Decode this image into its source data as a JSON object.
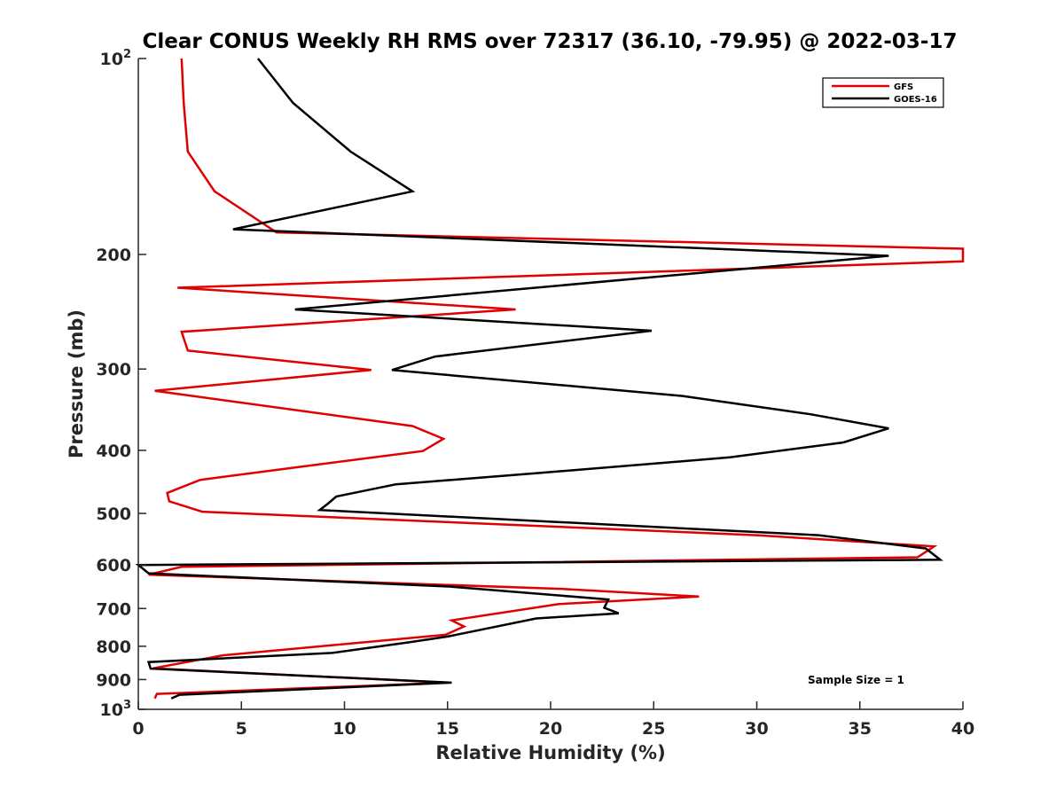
{
  "chart_data": {
    "type": "line",
    "title": "Clear CONUS Weekly RH RMS over 72317 (36.10, -79.95) @ 2022-03-17",
    "xlabel": "Relative Humidity (%)",
    "ylabel": "Pressure (mb)",
    "xlim": [
      0,
      40
    ],
    "ylim": [
      100,
      1000
    ],
    "y_scale": "log",
    "y_reversed": true,
    "grid": false,
    "legend_position": "top-right",
    "x_ticks": [
      "0",
      "5",
      "10",
      "15",
      "20",
      "25",
      "30",
      "35",
      "40"
    ],
    "y_ticks": [
      {
        "value": 100,
        "label": "10",
        "sup": "2"
      },
      {
        "value": 200,
        "label": "200",
        "sup": ""
      },
      {
        "value": 300,
        "label": "300",
        "sup": ""
      },
      {
        "value": 400,
        "label": "400",
        "sup": ""
      },
      {
        "value": 500,
        "label": "500",
        "sup": ""
      },
      {
        "value": 600,
        "label": "600",
        "sup": ""
      },
      {
        "value": 700,
        "label": "700",
        "sup": ""
      },
      {
        "value": 800,
        "label": "800",
        "sup": ""
      },
      {
        "value": 900,
        "label": "900",
        "sup": ""
      },
      {
        "value": 1000,
        "label": "10",
        "sup": "3"
      }
    ],
    "annotation": "Sample Size = 1",
    "series": [
      {
        "name": "GFS",
        "color": "#e00000",
        "points": [
          [
            2.1,
            100
          ],
          [
            2.2,
            117
          ],
          [
            2.4,
            139
          ],
          [
            3.7,
            160
          ],
          [
            6.7,
            185
          ],
          [
            40.0,
            196
          ],
          [
            40.0,
            205
          ],
          [
            1.9,
            225
          ],
          [
            18.3,
            243
          ],
          [
            2.1,
            263
          ],
          [
            2.4,
            281
          ],
          [
            11.3,
            301
          ],
          [
            0.8,
            324
          ],
          [
            13.3,
            367
          ],
          [
            14.8,
            384
          ],
          [
            13.8,
            401
          ],
          [
            7.6,
            425
          ],
          [
            3.0,
            444
          ],
          [
            1.4,
            465
          ],
          [
            1.5,
            479
          ],
          [
            3.1,
            497
          ],
          [
            30.0,
            540
          ],
          [
            38.6,
            562
          ],
          [
            37.8,
            584
          ],
          [
            2.1,
            604
          ],
          [
            0.5,
            621
          ],
          [
            20.5,
            653
          ],
          [
            27.2,
            671
          ],
          [
            20.4,
            689
          ],
          [
            15.2,
            730
          ],
          [
            15.8,
            746
          ],
          [
            14.9,
            768
          ],
          [
            4.1,
            826
          ],
          [
            0.7,
            865
          ],
          [
            15.0,
            910
          ],
          [
            0.9,
            947
          ],
          [
            0.8,
            962
          ]
        ]
      },
      {
        "name": "GOES-16",
        "color": "#000000",
        "points": [
          [
            5.8,
            100
          ],
          [
            7.5,
            117
          ],
          [
            10.3,
            139
          ],
          [
            13.3,
            160
          ],
          [
            4.6,
            183
          ],
          [
            36.4,
            201
          ],
          [
            7.6,
            243
          ],
          [
            24.9,
            262
          ],
          [
            14.4,
            287
          ],
          [
            12.3,
            301
          ],
          [
            26.4,
            330
          ],
          [
            32.6,
            352
          ],
          [
            36.4,
            370
          ],
          [
            34.2,
            389
          ],
          [
            28.7,
            410
          ],
          [
            19.2,
            434
          ],
          [
            12.5,
            451
          ],
          [
            9.6,
            471
          ],
          [
            9.2,
            483
          ],
          [
            8.8,
            494
          ],
          [
            33.0,
            540
          ],
          [
            38.2,
            566
          ],
          [
            38.9,
            589
          ],
          [
            0.0,
            600
          ],
          [
            0.5,
            618
          ],
          [
            15.2,
            648
          ],
          [
            22.8,
            678
          ],
          [
            22.6,
            698
          ],
          [
            23.3,
            712
          ],
          [
            19.3,
            725
          ],
          [
            15.0,
            773
          ],
          [
            13.1,
            789
          ],
          [
            9.4,
            819
          ],
          [
            0.5,
            846
          ],
          [
            0.6,
            866
          ],
          [
            15.2,
            910
          ],
          [
            2.0,
            950
          ],
          [
            1.6,
            962
          ]
        ]
      }
    ]
  }
}
